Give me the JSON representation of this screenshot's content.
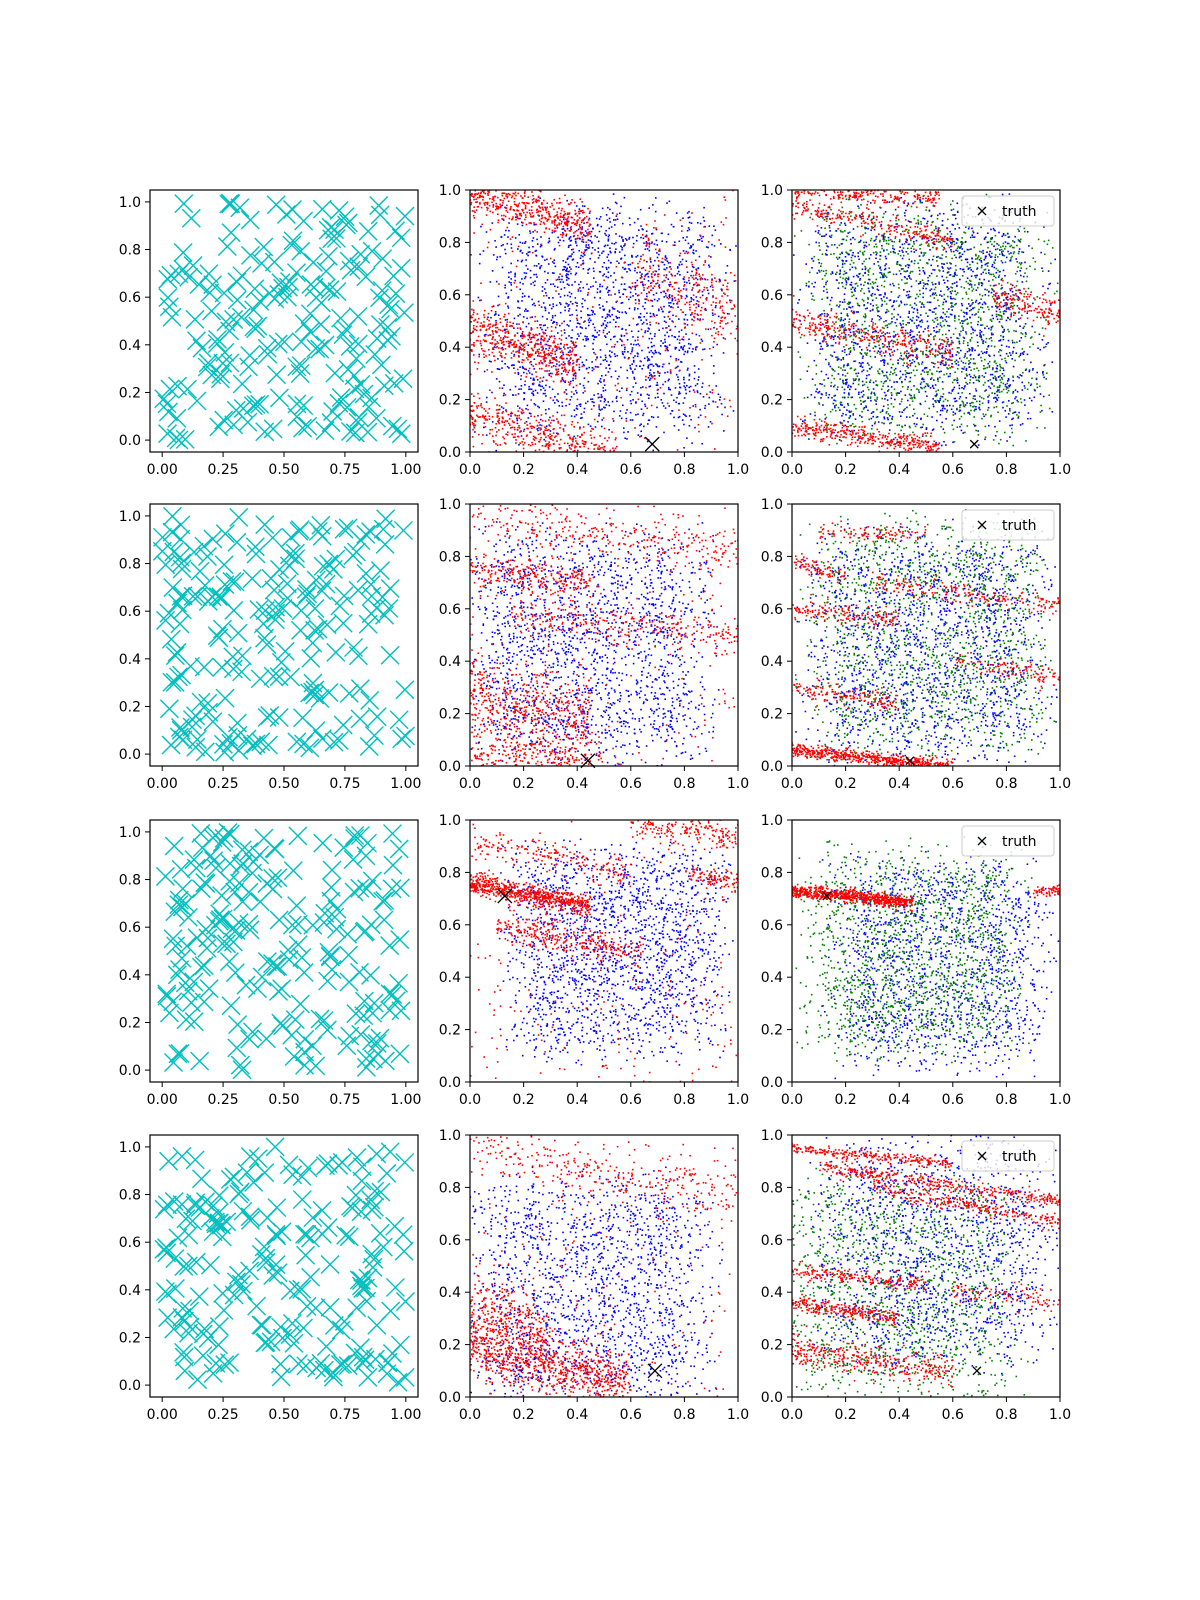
{
  "figure": {
    "rows": 4,
    "columns": 3,
    "colors": {
      "scatter_x_marker": "#00bfbf",
      "series_red": "#ff0000",
      "series_blue": "#0000ff",
      "series_green": "#008000",
      "truth_marker": "#000000"
    },
    "legend_label": "truth"
  },
  "chart_data": [
    {
      "type": "scatter",
      "row": 1,
      "col": 1,
      "marker": "x",
      "color": "#00bfbf",
      "xlim": [
        -0.05,
        1.05
      ],
      "ylim": [
        -0.05,
        1.05
      ],
      "xticks": [
        "0.00",
        "0.25",
        "0.50",
        "0.75",
        "1.00"
      ],
      "yticks": [
        "0.0",
        "0.2",
        "0.4",
        "0.6",
        "0.8",
        "1.0"
      ],
      "n_points": 200,
      "seed": 11
    },
    {
      "type": "scatter",
      "row": 1,
      "col": 2,
      "marker": "dot",
      "xlim": [
        0,
        1
      ],
      "ylim": [
        0,
        1
      ],
      "xticks": [
        "0.0",
        "0.2",
        "0.4",
        "0.6",
        "0.8",
        "1.0"
      ],
      "yticks": [
        "0.0",
        "0.2",
        "0.4",
        "0.6",
        "0.8",
        "1.0"
      ],
      "series": [
        {
          "name": "blue",
          "color": "#0000ff",
          "n": 1800,
          "center": [
            0.5,
            0.5
          ],
          "spread": 0.5
        },
        {
          "name": "red",
          "color": "#ff0000",
          "bands": [
            {
              "x0": 0.0,
              "x1": 0.45,
              "y0": 0.98,
              "slope": -0.25,
              "width": 0.04,
              "n": 450
            },
            {
              "x0": 0.0,
              "x1": 0.4,
              "y0": 0.47,
              "slope": -0.35,
              "width": 0.05,
              "n": 450
            },
            {
              "x0": 0.0,
              "x1": 0.55,
              "y0": 0.14,
              "slope": -0.3,
              "width": 0.05,
              "n": 450
            },
            {
              "x0": 0.6,
              "x1": 1.0,
              "y0": 0.72,
              "slope": -0.45,
              "width": 0.08,
              "n": 250
            },
            {
              "x0": 0.0,
              "x1": 1.0,
              "y0": 0.5,
              "slope": 0.0,
              "width": 0.5,
              "n": 350
            }
          ]
        }
      ],
      "truth": {
        "x": 0.68,
        "y": 0.03,
        "size": "large"
      }
    },
    {
      "type": "scatter",
      "row": 1,
      "col": 3,
      "marker": "dot",
      "xlim": [
        0,
        1
      ],
      "ylim": [
        0,
        1
      ],
      "xticks": [
        "0.0",
        "0.2",
        "0.4",
        "0.6",
        "0.8",
        "1.0"
      ],
      "yticks": [
        "0.0",
        "0.2",
        "0.4",
        "0.6",
        "0.8",
        "1.0"
      ],
      "series": [
        {
          "name": "green",
          "color": "#008000",
          "n": 1500,
          "center": [
            0.5,
            0.5
          ],
          "spread": 0.5
        },
        {
          "name": "blue",
          "color": "#0000ff",
          "n": 1500,
          "center": [
            0.5,
            0.5
          ],
          "spread": 0.5
        },
        {
          "name": "red",
          "color": "#ff0000",
          "bands": [
            {
              "x0": 0.0,
              "x1": 0.55,
              "y0": 1.0,
              "slope": -0.05,
              "width": 0.02,
              "n": 250
            },
            {
              "x0": 0.0,
              "x1": 0.6,
              "y0": 0.94,
              "slope": -0.22,
              "width": 0.02,
              "n": 250
            },
            {
              "x0": 0.0,
              "x1": 0.6,
              "y0": 0.5,
              "slope": -0.2,
              "width": 0.03,
              "n": 300
            },
            {
              "x0": 0.0,
              "x1": 0.55,
              "y0": 0.1,
              "slope": -0.15,
              "width": 0.02,
              "n": 350
            },
            {
              "x0": 0.75,
              "x1": 1.0,
              "y0": 0.6,
              "slope": -0.3,
              "width": 0.03,
              "n": 150
            }
          ]
        }
      ],
      "truth": {
        "x": 0.68,
        "y": 0.03,
        "size": "small"
      },
      "legend": {
        "label": "truth",
        "loc": "upper right"
      }
    },
    {
      "type": "scatter",
      "row": 2,
      "col": 1,
      "marker": "x",
      "color": "#00bfbf",
      "xlim": [
        -0.05,
        1.05
      ],
      "ylim": [
        -0.05,
        1.05
      ],
      "xticks": [
        "0.00",
        "0.25",
        "0.50",
        "0.75",
        "1.00"
      ],
      "yticks": [
        "0.0",
        "0.2",
        "0.4",
        "0.6",
        "0.8",
        "1.0"
      ],
      "n_points": 200,
      "seed": 23
    },
    {
      "type": "scatter",
      "row": 2,
      "col": 2,
      "marker": "dot",
      "xlim": [
        0,
        1
      ],
      "ylim": [
        0,
        1
      ],
      "xticks": [
        "0.0",
        "0.2",
        "0.4",
        "0.6",
        "0.8",
        "1.0"
      ],
      "yticks": [
        "0.0",
        "0.2",
        "0.4",
        "0.6",
        "0.8",
        "1.0"
      ],
      "series": [
        {
          "name": "blue",
          "color": "#0000ff",
          "n": 1800,
          "center": [
            0.45,
            0.45
          ],
          "spread": 0.5
        },
        {
          "name": "red",
          "color": "#ff0000",
          "bands": [
            {
              "x0": 0.0,
              "x1": 1.0,
              "y0": 0.96,
              "slope": -0.15,
              "width": 0.05,
              "n": 300
            },
            {
              "x0": 0.0,
              "x1": 0.45,
              "y0": 0.75,
              "slope": -0.1,
              "width": 0.03,
              "n": 250
            },
            {
              "x0": 0.15,
              "x1": 1.0,
              "y0": 0.58,
              "slope": -0.1,
              "width": 0.04,
              "n": 300
            },
            {
              "x0": 0.0,
              "x1": 0.45,
              "y0": 0.26,
              "slope": -0.2,
              "width": 0.08,
              "n": 500
            },
            {
              "x0": 0.0,
              "x1": 0.5,
              "y0": 0.06,
              "slope": -0.1,
              "width": 0.04,
              "n": 250
            },
            {
              "x0": 0.0,
              "x1": 1.0,
              "y0": 0.5,
              "slope": 0.0,
              "width": 0.5,
              "n": 300
            }
          ]
        }
      ],
      "truth": {
        "x": 0.44,
        "y": 0.02,
        "size": "large"
      }
    },
    {
      "type": "scatter",
      "row": 2,
      "col": 3,
      "marker": "dot",
      "xlim": [
        0,
        1
      ],
      "ylim": [
        0,
        1
      ],
      "xticks": [
        "0.0",
        "0.2",
        "0.4",
        "0.6",
        "0.8",
        "1.0"
      ],
      "yticks": [
        "0.0",
        "0.2",
        "0.4",
        "0.6",
        "0.8",
        "1.0"
      ],
      "series": [
        {
          "name": "green",
          "color": "#008000",
          "n": 1500,
          "center": [
            0.5,
            0.5
          ],
          "spread": 0.5
        },
        {
          "name": "blue",
          "color": "#0000ff",
          "n": 1500,
          "center": [
            0.5,
            0.45
          ],
          "spread": 0.5
        },
        {
          "name": "red",
          "color": "#ff0000",
          "bands": [
            {
              "x0": 0.1,
              "x1": 0.5,
              "y0": 0.9,
              "slope": -0.05,
              "width": 0.02,
              "n": 100
            },
            {
              "x0": 0.0,
              "x1": 0.2,
              "y0": 0.78,
              "slope": -0.3,
              "width": 0.02,
              "n": 80
            },
            {
              "x0": 0.3,
              "x1": 1.0,
              "y0": 0.7,
              "slope": -0.12,
              "width": 0.02,
              "n": 200
            },
            {
              "x0": 0.0,
              "x1": 0.4,
              "y0": 0.6,
              "slope": -0.1,
              "width": 0.02,
              "n": 150
            },
            {
              "x0": 0.0,
              "x1": 0.4,
              "y0": 0.3,
              "slope": -0.15,
              "width": 0.02,
              "n": 150
            },
            {
              "x0": 0.0,
              "x1": 0.6,
              "y0": 0.06,
              "slope": -0.1,
              "width": 0.012,
              "n": 600
            },
            {
              "x0": 0.6,
              "x1": 1.0,
              "y0": 0.4,
              "slope": -0.15,
              "width": 0.02,
              "n": 120
            }
          ]
        }
      ],
      "truth": {
        "x": 0.44,
        "y": 0.02,
        "size": "small"
      },
      "legend": {
        "label": "truth",
        "loc": "upper right"
      }
    },
    {
      "type": "scatter",
      "row": 3,
      "col": 1,
      "marker": "x",
      "color": "#00bfbf",
      "xlim": [
        -0.05,
        1.05
      ],
      "ylim": [
        -0.05,
        1.05
      ],
      "xticks": [
        "0.00",
        "0.25",
        "0.50",
        "0.75",
        "1.00"
      ],
      "yticks": [
        "0.0",
        "0.2",
        "0.4",
        "0.6",
        "0.8",
        "1.0"
      ],
      "n_points": 200,
      "seed": 37
    },
    {
      "type": "scatter",
      "row": 3,
      "col": 2,
      "marker": "dot",
      "xlim": [
        0,
        1
      ],
      "ylim": [
        0,
        1
      ],
      "xticks": [
        "0.0",
        "0.2",
        "0.4",
        "0.6",
        "0.8",
        "1.0"
      ],
      "yticks": [
        "0.0",
        "0.2",
        "0.4",
        "0.6",
        "0.8",
        "1.0"
      ],
      "series": [
        {
          "name": "blue",
          "color": "#0000ff",
          "n": 1800,
          "center": [
            0.55,
            0.5
          ],
          "spread": 0.45
        },
        {
          "name": "red",
          "color": "#ff0000",
          "bands": [
            {
              "x0": 0.0,
              "x1": 0.45,
              "y0": 0.76,
              "slope": -0.2,
              "width": 0.02,
              "n": 700
            },
            {
              "x0": 0.0,
              "x1": 0.6,
              "y0": 0.92,
              "slope": -0.2,
              "width": 0.03,
              "n": 200
            },
            {
              "x0": 0.6,
              "x1": 1.0,
              "y0": 0.98,
              "slope": -0.1,
              "width": 0.03,
              "n": 200
            },
            {
              "x0": 0.1,
              "x1": 0.65,
              "y0": 0.6,
              "slope": -0.2,
              "width": 0.03,
              "n": 300
            },
            {
              "x0": 0.8,
              "x1": 1.0,
              "y0": 0.8,
              "slope": -0.2,
              "width": 0.02,
              "n": 100
            },
            {
              "x0": 0.0,
              "x1": 1.0,
              "y0": 0.3,
              "slope": 0.0,
              "width": 0.3,
              "n": 250
            }
          ]
        }
      ],
      "truth": {
        "x": 0.13,
        "y": 0.71,
        "size": "large"
      }
    },
    {
      "type": "scatter",
      "row": 3,
      "col": 3,
      "marker": "dot",
      "xlim": [
        0,
        1
      ],
      "ylim": [
        0,
        1
      ],
      "xticks": [
        "0.0",
        "0.2",
        "0.4",
        "0.6",
        "0.8",
        "1.0"
      ],
      "yticks": [
        "0.0",
        "0.2",
        "0.4",
        "0.6",
        "0.8",
        "1.0"
      ],
      "series": [
        {
          "name": "blue",
          "color": "#0000ff",
          "n": 1400,
          "center": [
            0.55,
            0.45
          ],
          "spread": 0.45
        },
        {
          "name": "green",
          "color": "#008000",
          "n": 1400,
          "center": [
            0.45,
            0.5
          ],
          "spread": 0.45
        },
        {
          "name": "red",
          "color": "#ff0000",
          "bands": [
            {
              "x0": 0.0,
              "x1": 0.45,
              "y0": 0.73,
              "slope": -0.1,
              "width": 0.012,
              "n": 700
            },
            {
              "x0": 0.9,
              "x1": 1.0,
              "y0": 0.73,
              "slope": 0.0,
              "width": 0.01,
              "n": 60
            }
          ]
        }
      ],
      "truth": {
        "x": 0.13,
        "y": 0.71,
        "size": "small"
      },
      "legend": {
        "label": "truth",
        "loc": "upper right"
      }
    },
    {
      "type": "scatter",
      "row": 4,
      "col": 1,
      "marker": "x",
      "color": "#00bfbf",
      "xlim": [
        -0.05,
        1.05
      ],
      "ylim": [
        -0.05,
        1.05
      ],
      "xticks": [
        "0.00",
        "0.25",
        "0.50",
        "0.75",
        "1.00"
      ],
      "yticks": [
        "0.0",
        "0.2",
        "0.4",
        "0.6",
        "0.8",
        "1.0"
      ],
      "n_points": 200,
      "seed": 53
    },
    {
      "type": "scatter",
      "row": 4,
      "col": 2,
      "marker": "dot",
      "xlim": [
        0,
        1
      ],
      "ylim": [
        0,
        1
      ],
      "xticks": [
        "0.0",
        "0.2",
        "0.4",
        "0.6",
        "0.8",
        "1.0"
      ],
      "yticks": [
        "0.0",
        "0.2",
        "0.4",
        "0.6",
        "0.8",
        "1.0"
      ],
      "series": [
        {
          "name": "blue",
          "color": "#0000ff",
          "n": 1700,
          "center": [
            0.45,
            0.4
          ],
          "spread": 0.5
        },
        {
          "name": "red",
          "color": "#ff0000",
          "bands": [
            {
              "x0": 0.0,
              "x1": 0.6,
              "y0": 0.2,
              "slope": -0.25,
              "width": 0.06,
              "n": 900
            },
            {
              "x0": 0.0,
              "x1": 0.3,
              "y0": 0.35,
              "slope": -0.3,
              "width": 0.06,
              "n": 250
            },
            {
              "x0": 0.0,
              "x1": 1.0,
              "y0": 0.95,
              "slope": -0.2,
              "width": 0.05,
              "n": 300
            },
            {
              "x0": 0.0,
              "x1": 1.0,
              "y0": 0.5,
              "slope": 0.0,
              "width": 0.5,
              "n": 300
            }
          ]
        }
      ],
      "truth": {
        "x": 0.69,
        "y": 0.1,
        "size": "large"
      }
    },
    {
      "type": "scatter",
      "row": 4,
      "col": 3,
      "marker": "dot",
      "xlim": [
        0,
        1
      ],
      "ylim": [
        0,
        1
      ],
      "xticks": [
        "0.0",
        "0.2",
        "0.4",
        "0.6",
        "0.8",
        "1.0"
      ],
      "yticks": [
        "0.0",
        "0.2",
        "0.4",
        "0.6",
        "0.8",
        "1.0"
      ],
      "series": [
        {
          "name": "green",
          "color": "#008000",
          "n": 1400,
          "center": [
            0.4,
            0.4
          ],
          "spread": 0.5
        },
        {
          "name": "blue",
          "color": "#0000ff",
          "n": 1400,
          "center": [
            0.55,
            0.55
          ],
          "spread": 0.5
        },
        {
          "name": "red",
          "color": "#ff0000",
          "bands": [
            {
              "x0": 0.0,
              "x1": 0.6,
              "y0": 0.95,
              "slope": -0.1,
              "width": 0.01,
              "n": 250
            },
            {
              "x0": 0.1,
              "x1": 1.0,
              "y0": 0.88,
              "slope": -0.15,
              "width": 0.015,
              "n": 350
            },
            {
              "x0": 0.3,
              "x1": 1.0,
              "y0": 0.8,
              "slope": -0.2,
              "width": 0.015,
              "n": 250
            },
            {
              "x0": 0.0,
              "x1": 0.5,
              "y0": 0.48,
              "slope": -0.1,
              "width": 0.015,
              "n": 200
            },
            {
              "x0": 0.0,
              "x1": 0.4,
              "y0": 0.36,
              "slope": -0.15,
              "width": 0.015,
              "n": 250
            },
            {
              "x0": 0.0,
              "x1": 0.6,
              "y0": 0.18,
              "slope": -0.15,
              "width": 0.03,
              "n": 350
            },
            {
              "x0": 0.6,
              "x1": 1.0,
              "y0": 0.4,
              "slope": -0.1,
              "width": 0.02,
              "n": 100
            }
          ]
        }
      ],
      "truth": {
        "x": 0.69,
        "y": 0.1,
        "size": "small"
      },
      "legend": {
        "label": "truth",
        "loc": "upper right"
      }
    }
  ]
}
